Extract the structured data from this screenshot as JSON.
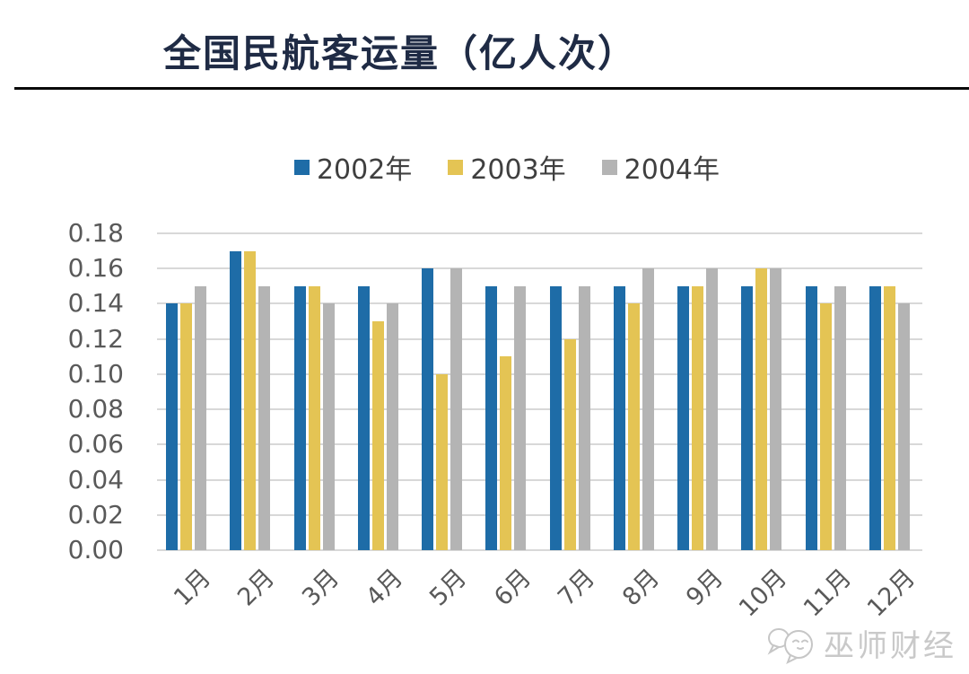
{
  "chart": {
    "title": "全国民航客运量（亿人次）"
  },
  "watermark": {
    "text": "巫师财经"
  },
  "chart_data": {
    "type": "bar",
    "title": "全国民航客运量（亿人次）",
    "xlabel": "",
    "ylabel": "",
    "categories": [
      "1月",
      "2月",
      "3月",
      "4月",
      "5月",
      "6月",
      "7月",
      "8月",
      "9月",
      "10月",
      "11月",
      "12月"
    ],
    "series": [
      {
        "name": "2002年",
        "color": "#1E6CA7",
        "values": [
          0.14,
          0.17,
          0.15,
          0.15,
          0.16,
          0.15,
          0.15,
          0.15,
          0.15,
          0.15,
          0.15,
          0.15
        ]
      },
      {
        "name": "2003年",
        "color": "#E4C454",
        "values": [
          0.14,
          0.17,
          0.15,
          0.13,
          0.1,
          0.11,
          0.12,
          0.14,
          0.15,
          0.16,
          0.14,
          0.15
        ]
      },
      {
        "name": "2004年",
        "color": "#B4B4B4",
        "values": [
          0.15,
          0.15,
          0.14,
          0.14,
          0.16,
          0.15,
          0.15,
          0.16,
          0.16,
          0.16,
          0.15,
          0.14
        ]
      }
    ],
    "ylim": [
      0,
      0.18
    ],
    "ytick_step": 0.02,
    "ytick_labels": [
      "0.00",
      "0.02",
      "0.04",
      "0.06",
      "0.08",
      "0.10",
      "0.12",
      "0.14",
      "0.16",
      "0.18"
    ],
    "grid": true,
    "gridline_color": "#D8D8D8",
    "axis_text_color": "#595959",
    "legend_position": "top",
    "legend_text_color": "#3F3F3F",
    "title_color": "#1F2B45"
  }
}
